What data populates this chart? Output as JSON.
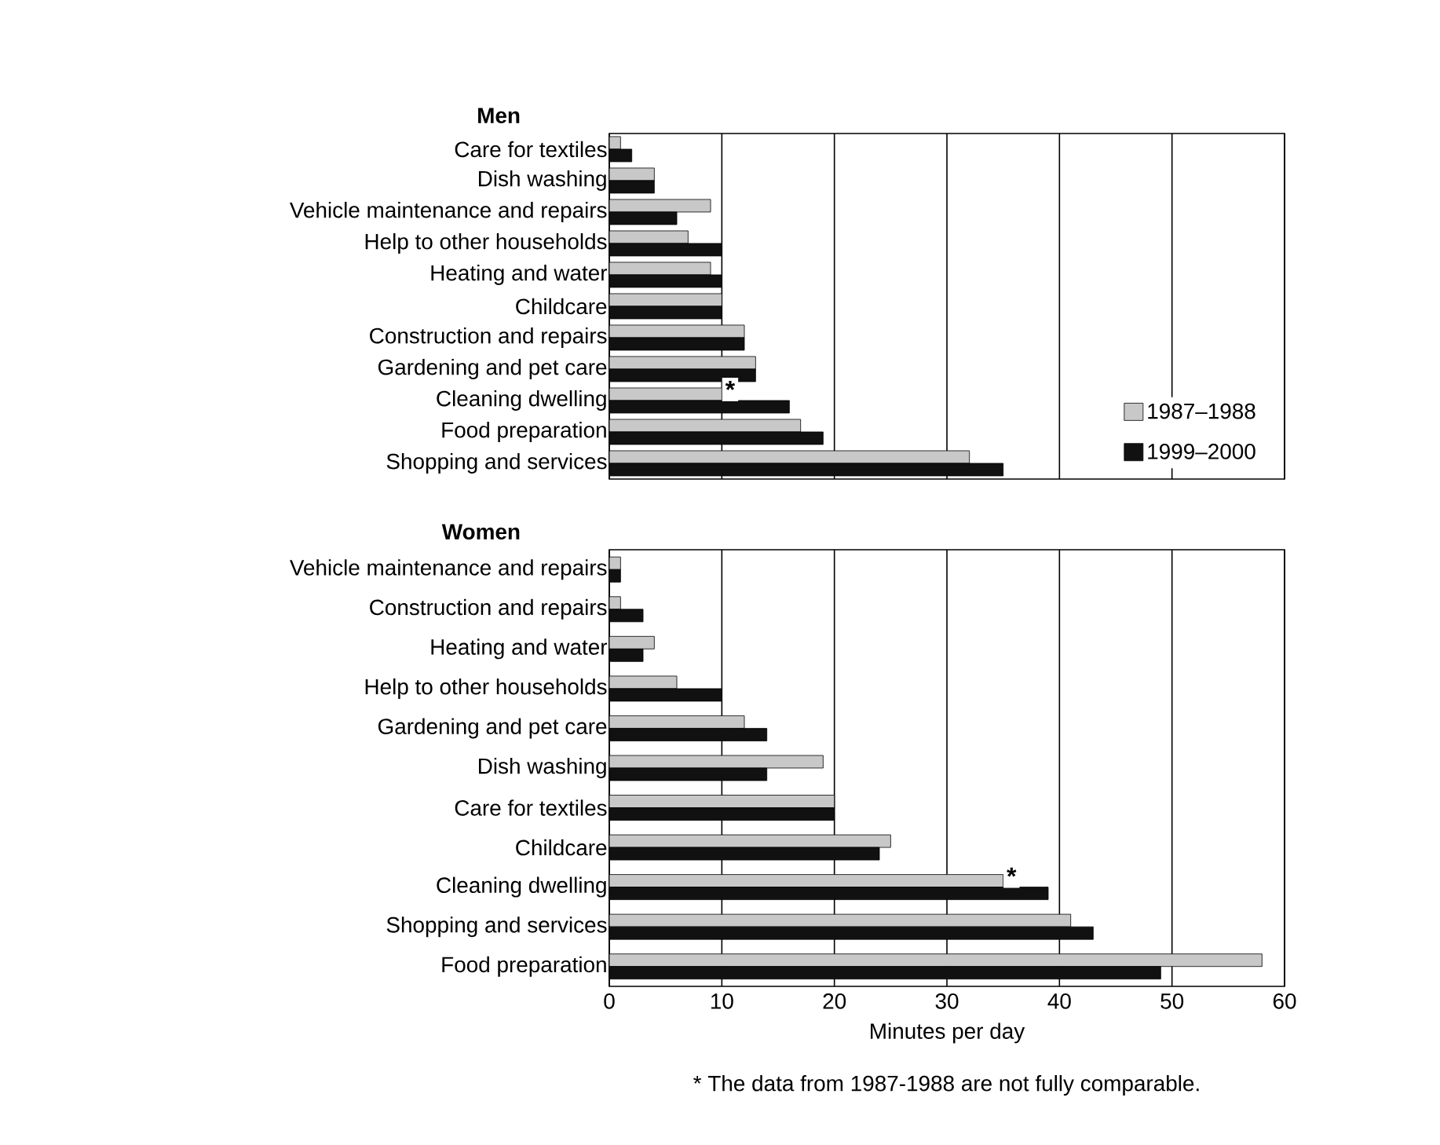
{
  "chart_data": [
    {
      "type": "bar",
      "orientation": "horizontal",
      "title": "Men",
      "categories": [
        "Care for textiles",
        "Dish washing",
        "Vehicle maintenance and repairs",
        "Help to other households",
        "Heating and water",
        "Childcare",
        "Construction and repairs",
        "Gardening and pet care",
        "Cleaning dwelling",
        "Food preparation",
        "Shopping and services"
      ],
      "series": [
        {
          "name": "1987–1988",
          "color": "#c8c8c8",
          "values": [
            1,
            4,
            9,
            7,
            9,
            10,
            12,
            13,
            10,
            17,
            32
          ]
        },
        {
          "name": "1999–2000",
          "color": "#111111",
          "values": [
            2,
            4,
            6,
            10,
            10,
            10,
            12,
            13,
            16,
            19,
            35
          ]
        }
      ],
      "xlim": [
        0,
        60
      ],
      "xticks": [
        0,
        10,
        20,
        30,
        40,
        50,
        60
      ],
      "grid": "x",
      "legend": "bottom right",
      "tick_labels": "y",
      "annotations": [
        {
          "text": "*",
          "x": 10,
          "y": "Cleaning dwelling"
        }
      ]
    },
    {
      "type": "bar",
      "orientation": "horizontal",
      "title": "Women",
      "xlabel": "Minutes per day",
      "categories": [
        "Vehicle maintenance and repairs",
        "Construction and repairs",
        "Heating and water",
        "Help to other households",
        "Gardening and pet care",
        "Dish washing",
        "Care for textiles",
        "Childcare",
        "Cleaning dwelling",
        "Shopping and services",
        "Food preparation"
      ],
      "series": [
        {
          "color": "#c8c8c8",
          "values": [
            1,
            1,
            4,
            6,
            12,
            19,
            20,
            25,
            35,
            41,
            58
          ]
        },
        {
          "color": "#111111",
          "values": [
            1,
            3,
            3,
            10,
            14,
            14,
            20,
            24,
            39,
            43,
            49
          ]
        }
      ],
      "xlim": [
        0,
        60
      ],
      "xticks": [
        0,
        10,
        20,
        30,
        40,
        50,
        60
      ],
      "grid": "x",
      "annotations": [
        {
          "text": "*",
          "x": 35,
          "y": "Cleaning dwelling"
        },
        "* The data from 1987-1988 are not fully comparable."
      ]
    }
  ]
}
